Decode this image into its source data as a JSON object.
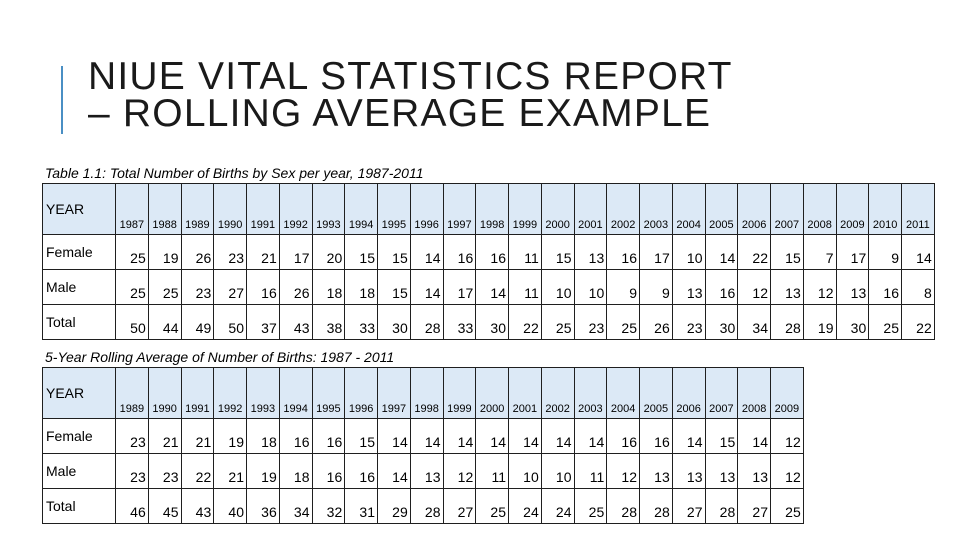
{
  "slide": {
    "title_line1": "NIUE VITAL STATISTICS REPORT",
    "title_line2": "– ROLLING AVERAGE EXAMPLE"
  },
  "table1": {
    "caption": "Table 1.1: Total Number of Births by Sex per year, 1987-2011",
    "header_label": "YEAR",
    "years": [
      "1987",
      "1988",
      "1989",
      "1990",
      "1991",
      "1992",
      "1993",
      "1994",
      "1995",
      "1996",
      "1997",
      "1998",
      "1999",
      "2000",
      "2001",
      "2002",
      "2003",
      "2004",
      "2005",
      "2006",
      "2007",
      "2008",
      "2009",
      "2010",
      "2011"
    ],
    "rows": [
      {
        "label": "Female",
        "values": [
          "25",
          "19",
          "26",
          "23",
          "21",
          "17",
          "20",
          "15",
          "15",
          "14",
          "16",
          "16",
          "11",
          "15",
          "13",
          "16",
          "17",
          "10",
          "14",
          "22",
          "15",
          "7",
          "17",
          "9",
          "14"
        ]
      },
      {
        "label": "Male",
        "values": [
          "25",
          "25",
          "23",
          "27",
          "16",
          "26",
          "18",
          "18",
          "15",
          "14",
          "17",
          "14",
          "11",
          "10",
          "10",
          "9",
          "9",
          "13",
          "16",
          "12",
          "13",
          "12",
          "13",
          "16",
          "8"
        ]
      },
      {
        "label": "Total",
        "values": [
          "50",
          "44",
          "49",
          "50",
          "37",
          "43",
          "38",
          "33",
          "30",
          "28",
          "33",
          "30",
          "22",
          "25",
          "23",
          "25",
          "26",
          "23",
          "30",
          "34",
          "28",
          "19",
          "30",
          "25",
          "22"
        ]
      }
    ]
  },
  "table2": {
    "caption": "5-Year Rolling Average of Number of Births: 1987 - 2011",
    "header_label": "YEAR",
    "years": [
      "1989",
      "1990",
      "1991",
      "1992",
      "1993",
      "1994",
      "1995",
      "1996",
      "1997",
      "1998",
      "1999",
      "2000",
      "2001",
      "2002",
      "2003",
      "2004",
      "2005",
      "2006",
      "2007",
      "2008",
      "2009"
    ],
    "rows": [
      {
        "label": "Female",
        "values": [
          "23",
          "21",
          "21",
          "19",
          "18",
          "16",
          "16",
          "15",
          "14",
          "14",
          "14",
          "14",
          "14",
          "14",
          "14",
          "16",
          "16",
          "14",
          "15",
          "14",
          "12"
        ]
      },
      {
        "label": "Male",
        "values": [
          "23",
          "23",
          "22",
          "21",
          "19",
          "18",
          "16",
          "16",
          "14",
          "13",
          "12",
          "11",
          "10",
          "10",
          "11",
          "12",
          "13",
          "13",
          "13",
          "13",
          "12"
        ]
      },
      {
        "label": "Total",
        "values": [
          "46",
          "45",
          "43",
          "40",
          "36",
          "34",
          "32",
          "31",
          "29",
          "28",
          "27",
          "25",
          "24",
          "24",
          "25",
          "28",
          "28",
          "27",
          "28",
          "27",
          "25"
        ]
      }
    ]
  }
}
